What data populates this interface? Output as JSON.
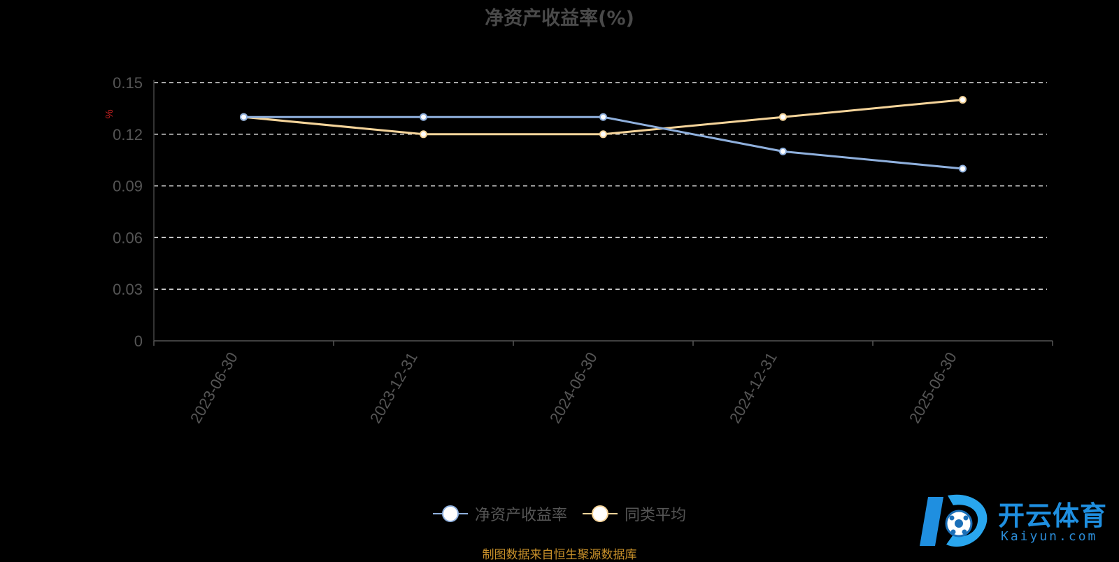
{
  "chart_data": {
    "type": "line",
    "title": "净资产收益率(%)",
    "ylabel": "%",
    "xlabel": "",
    "categories": [
      "2023-06-30",
      "2023-12-31",
      "2024-06-30",
      "2024-12-31",
      "2025-06-30"
    ],
    "ylim": [
      0,
      0.15
    ],
    "yticks": [
      "0",
      "0.03",
      "0.06",
      "0.09",
      "0.12",
      "0.15"
    ],
    "ytick_values": [
      0,
      0.03,
      0.06,
      0.09,
      0.12,
      0.15
    ],
    "grid": true,
    "legend_position": "bottom",
    "series": [
      {
        "name": "净资产收益率",
        "values": [
          0.13,
          0.13,
          0.13,
          0.11,
          0.1
        ],
        "color": "#8fb0dd"
      },
      {
        "name": "同类平均",
        "values": [
          0.13,
          0.12,
          0.12,
          0.13,
          0.14
        ],
        "color": "#f5d49a"
      }
    ]
  },
  "source_note": "制图数据来自恒生聚源数据库",
  "watermark": {
    "text": "开云体育",
    "sub": "Kaiyun.com",
    "icon": "kaiyun-logo-icon"
  }
}
